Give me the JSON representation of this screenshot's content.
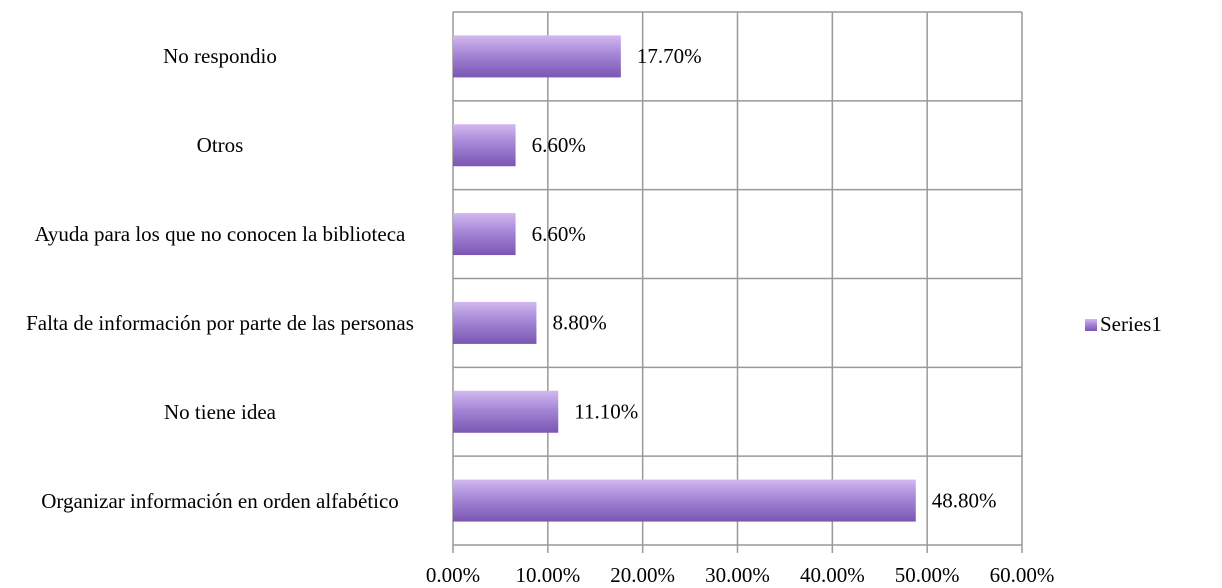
{
  "chart_data": {
    "type": "bar",
    "orientation": "horizontal",
    "categories": [
      "Organizar información en orden alfabético",
      "No tiene idea",
      "Falta de información por parte de las personas",
      "Ayuda para los que no conocen la biblioteca",
      "Otros",
      "No respondio"
    ],
    "series": [
      {
        "name": "Series1",
        "color": "#9370c9",
        "values": [
          48.8,
          11.1,
          8.8,
          6.6,
          6.6,
          17.7
        ],
        "value_labels": [
          "48.80%",
          "11.10%",
          "8.80%",
          "6.60%",
          "6.60%",
          "17.70%"
        ]
      }
    ],
    "xlim": [
      0,
      60
    ],
    "xticks": [
      {
        "value": 0,
        "label": "0.00%"
      },
      {
        "value": 10,
        "label": "10.00%"
      },
      {
        "value": 20,
        "label": "20.00%"
      },
      {
        "value": 30,
        "label": "30.00%"
      },
      {
        "value": 40,
        "label": "40.00%"
      },
      {
        "value": 50,
        "label": "50.00%"
      },
      {
        "value": 60,
        "label": "60.00%"
      }
    ],
    "grid": true,
    "legend": "right"
  }
}
